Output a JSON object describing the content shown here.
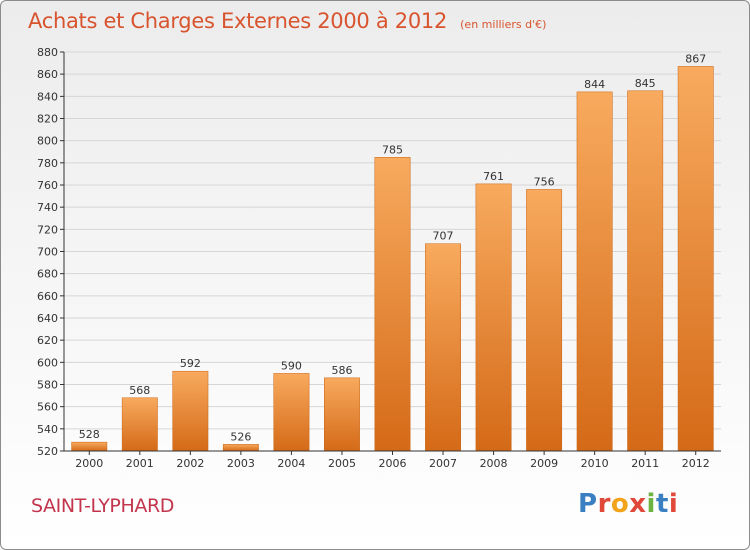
{
  "title": "Achats et Charges Externes 2000 à 2012",
  "subtitle": "(en milliers d'€)",
  "commune": "SAINT-LYPHARD",
  "logo": {
    "text": "Proxiti",
    "colors": [
      "#3a7fc1",
      "#e0483a",
      "#f2a21b",
      "#e0483a",
      "#6db33f",
      "#3a7fc1",
      "#e0483a"
    ]
  },
  "colors": {
    "bar": "#f0913c",
    "bar_light": "#f8aa5e",
    "bar_dark": "#d46a18",
    "axis": "#333333",
    "grid": "#d6d6d6",
    "title": "#d8542e",
    "commune": "#c2354d"
  },
  "chart_data": {
    "type": "bar",
    "categories": [
      "2000",
      "2001",
      "2002",
      "2003",
      "2004",
      "2005",
      "2006",
      "2007",
      "2008",
      "2009",
      "2010",
      "2011",
      "2012"
    ],
    "values": [
      528,
      568,
      592,
      526,
      590,
      586,
      785,
      707,
      761,
      756,
      844,
      845,
      867
    ],
    "ylim": [
      520,
      880
    ],
    "yticks": [
      520,
      540,
      560,
      580,
      600,
      620,
      640,
      660,
      680,
      700,
      720,
      740,
      760,
      780,
      800,
      820,
      840,
      860,
      880
    ],
    "title": "Achats et Charges Externes 2000 à 2012",
    "xlabel": "",
    "ylabel": "",
    "grid": true,
    "data_labels": true
  }
}
